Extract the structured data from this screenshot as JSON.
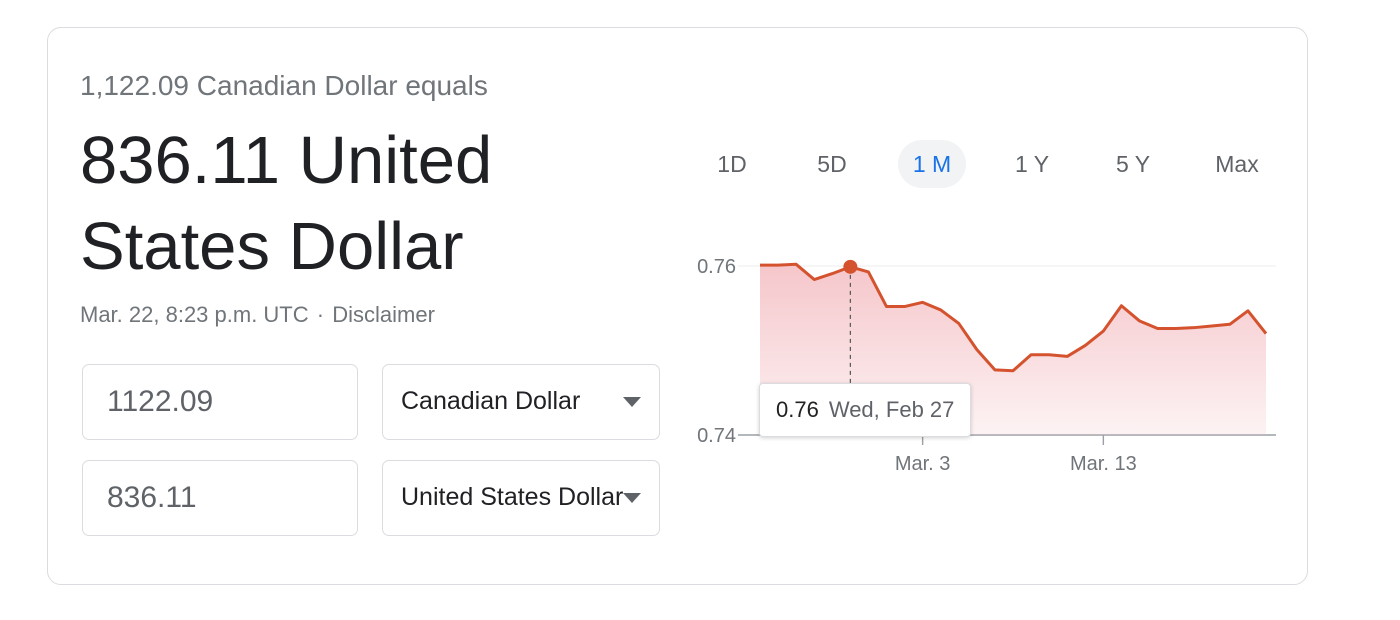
{
  "converter": {
    "subtitle": "1,122.09 Canadian Dollar equals",
    "result": "836.11 United States Dollar",
    "timestamp": "Mar. 22, 8:23 p.m. UTC",
    "separator": "·",
    "disclaimer": "Disclaimer",
    "from_amount": "1122.09",
    "from_currency": "Canadian Dollar",
    "to_amount": "836.11",
    "to_currency": "United States Dollar"
  },
  "ranges": {
    "items": [
      "1D",
      "5D",
      "1 M",
      "1 Y",
      "5 Y",
      "Max"
    ],
    "active": "1 M"
  },
  "tooltip": {
    "value": "0.76",
    "date": "Wed, Feb 27"
  },
  "chart_data": {
    "type": "area",
    "color": "#d4532e",
    "fill_color": "#f4c0c5",
    "y_ticks": [
      0.76,
      0.74
    ],
    "y_tick_labels": [
      "0.76",
      "0.74"
    ],
    "ylim": [
      0.74,
      0.76
    ],
    "x_tick_labels": [
      "Mar. 3",
      "Mar. 13"
    ],
    "highlight_index": 5,
    "values": [
      0.7601,
      0.7601,
      0.7602,
      0.7584,
      0.7591,
      0.7599,
      0.7593,
      0.7552,
      0.7552,
      0.7557,
      0.7548,
      0.7532,
      0.7501,
      0.7477,
      0.7476,
      0.7495,
      0.7495,
      0.7493,
      0.7506,
      0.7523,
      0.7553,
      0.7535,
      0.7526,
      0.7526,
      0.7527,
      0.7529,
      0.7531,
      0.7547,
      0.752
    ],
    "x_tick_indices": [
      9,
      19
    ]
  }
}
